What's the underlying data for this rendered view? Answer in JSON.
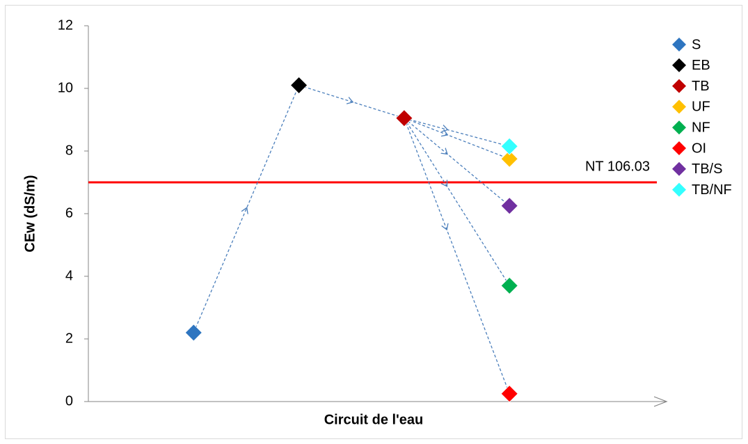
{
  "chart_data": {
    "type": "scatter",
    "x_label": "Circuit de l'eau",
    "y_label": "CEw (dS/m)",
    "xlim": [
      0,
      5.4
    ],
    "ylim": [
      0,
      12
    ],
    "yticks": [
      0,
      2,
      4,
      6,
      8,
      10,
      12
    ],
    "reference_line": {
      "value": 7,
      "label": "NT 106.03",
      "color": "#ff0000"
    },
    "legend": "right",
    "series": [
      {
        "name": "S",
        "color": "#2e75c0",
        "x": [
          1
        ],
        "values": [
          2.2
        ]
      },
      {
        "name": "EB",
        "color": "#000000",
        "x": [
          2
        ],
        "values": [
          10.1
        ]
      },
      {
        "name": "TB",
        "color": "#c00000",
        "x": [
          3
        ],
        "values": [
          9.05
        ]
      },
      {
        "name": "UF",
        "color": "#ffc000",
        "x": [
          4
        ],
        "values": [
          7.75
        ]
      },
      {
        "name": "NF",
        "color": "#00b050",
        "x": [
          4
        ],
        "values": [
          3.7
        ]
      },
      {
        "name": "OI",
        "color": "#ff0000",
        "x": [
          4
        ],
        "values": [
          0.25
        ]
      },
      {
        "name": "TB/S",
        "color": "#7030a0",
        "x": [
          4
        ],
        "values": [
          6.25
        ]
      },
      {
        "name": "TB/NF",
        "color": "#33ffff",
        "x": [
          4
        ],
        "values": [
          8.15
        ]
      }
    ]
  }
}
